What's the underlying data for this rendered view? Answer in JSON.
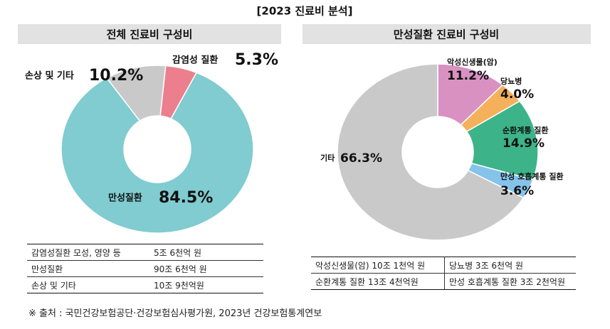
{
  "title": "[2023 진료비 분석]",
  "chart_data": [
    {
      "type": "donut",
      "title": "전체 진료비 구성비",
      "categories": [
        "감염성 질환",
        "만성질환",
        "손상 및 기타"
      ],
      "values": [
        5.3,
        84.5,
        10.2
      ],
      "value_labels": [
        "5.3%",
        "84.5%",
        "10.2%"
      ],
      "colors": [
        "#ec7f8e",
        "#80ccd0",
        "#c9c9c9"
      ]
    },
    {
      "type": "donut",
      "title": "만성질환 진료비 구성비",
      "categories": [
        "악성신생물(암)",
        "당뇨병",
        "순환계통 질환",
        "만성 호흡계통 질환",
        "기타"
      ],
      "values": [
        11.2,
        4.0,
        14.9,
        3.6,
        66.3
      ],
      "value_labels": [
        "11.2%",
        "4.0%",
        "14.9%",
        "3.6%",
        "66.3%"
      ],
      "colors": [
        "#d991c2",
        "#f5b05c",
        "#3db38a",
        "#85c3ea",
        "#c9c9c9"
      ]
    }
  ],
  "tables": [
    {
      "rows": [
        [
          "감염성질환 모성, 영양 등",
          "5조 6천억 원"
        ],
        [
          "만성질환",
          "90조 6천억 원"
        ],
        [
          "손상 및 기타",
          "10조 9천억원"
        ]
      ]
    },
    {
      "rows": [
        [
          "악성신생물(암) 10조 1천억 원",
          "당뇨병 3조 6천억 원"
        ],
        [
          "순환계통 질환 13조 4천억원",
          "만성 호흡계통 질환 3조 2천억원"
        ]
      ]
    }
  ],
  "source": "※ 출처 : 국민건강보험공단·건강보험심사평가원, 2023년 건강보험통계연보"
}
